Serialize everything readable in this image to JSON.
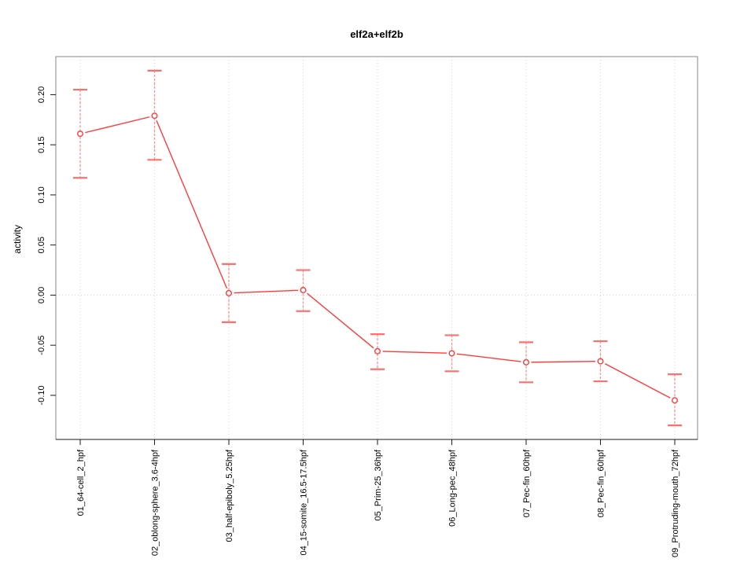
{
  "title": "elf2a+elf2b",
  "chart_data": {
    "type": "line",
    "title": "elf2a+elf2b",
    "xlabel": "",
    "ylabel": "activity",
    "categories": [
      "01_64-cell_2_hpf",
      "02_oblong-sphere_3.6-4hpf",
      "03_half-epiboly_5.25hpf",
      "04_15-somite_16.5-17.5hpf",
      "05_Prim-25_36hpf",
      "06_Long-pec_48hpf",
      "07_Pec-fin_60hpf",
      "08_Pec-fin_60hpf",
      "09_Protruding-mouth_72hpf"
    ],
    "series": [
      {
        "name": "activity",
        "values": [
          0.161,
          0.179,
          0.002,
          0.005,
          -0.056,
          -0.058,
          -0.067,
          -0.066,
          -0.105
        ],
        "upper": [
          0.205,
          0.224,
          0.031,
          0.025,
          -0.039,
          -0.04,
          -0.047,
          -0.046,
          -0.079
        ],
        "lower": [
          0.117,
          0.135,
          -0.027,
          -0.016,
          -0.074,
          -0.076,
          -0.087,
          -0.086,
          -0.13
        ]
      }
    ],
    "yticks": [
      0.2,
      0.15,
      0.1,
      0.05,
      0.0,
      -0.05,
      -0.1
    ],
    "ytick_labels": [
      "0.20",
      "0.15",
      "0.10",
      "0.05",
      "0.00",
      "-0.05",
      "-0.10"
    ],
    "ylim": [
      -0.144,
      0.238
    ],
    "marker": "open-circle",
    "legend": "none",
    "grid": {
      "vertical_dotted_at_each_category": true,
      "horizontal_dotted_at_zero": true
    },
    "colors": {
      "line": "#ff3b3b",
      "error_bar": "#ff9090",
      "error_cap": "#ff6f6f",
      "grid": "#d4d4d4",
      "box": "#8a8a8a",
      "axis": "#1a1a1a",
      "text": "#000000"
    }
  }
}
